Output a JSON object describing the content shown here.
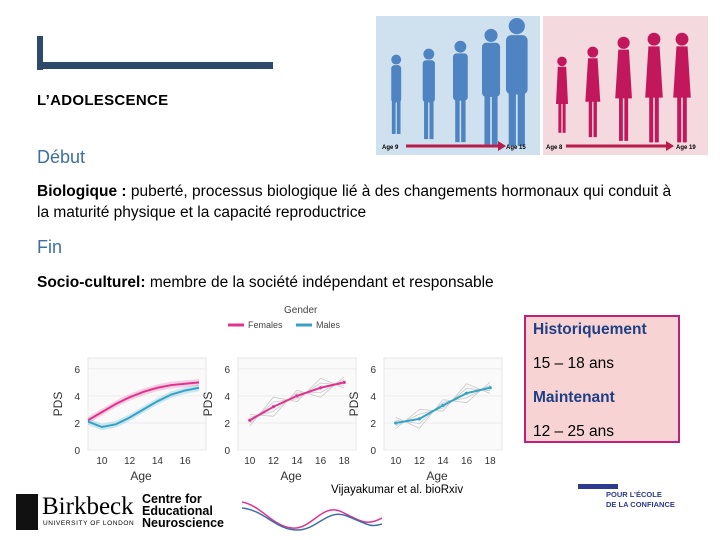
{
  "slide": {
    "title": "L’ADOLESCENCE",
    "debut_heading": "Début",
    "fin_heading": "Fin",
    "p1_term": "Biologique :",
    "p1_text": " puberté, processus biologique lié à des changements hormonaux qui conduit à la maturité physique et la capacité reproductrice",
    "p2_term": "Socio-culturel:",
    "p2_text": " membre de la société indépendant et responsable"
  },
  "figure": {
    "blue_arrow": {
      "start": "Age 9",
      "end": "Age 15"
    },
    "pink_arrow": {
      "start": "Age 8",
      "end": "Age 19"
    }
  },
  "infobox": {
    "label1": "Historiquement",
    "value1": "15 – 18 ans",
    "label2": "Maintenant",
    "value2": "12 – 25 ans"
  },
  "chart_data": [
    {
      "type": "line",
      "title": "",
      "xlabel": "Age",
      "ylabel": "PDS",
      "xticks": [
        10,
        12,
        14,
        16
      ],
      "yticks": [
        0,
        2,
        4,
        6
      ],
      "legend_title": "Gender",
      "series": [
        {
          "name": "Females",
          "x": [
            9,
            10,
            11,
            12,
            13,
            14,
            15,
            16,
            17
          ],
          "values": [
            2.2,
            2.8,
            3.4,
            3.9,
            4.3,
            4.6,
            4.8,
            4.9,
            5.0
          ]
        },
        {
          "name": "Males",
          "x": [
            9,
            10,
            11,
            12,
            13,
            14,
            15,
            16,
            17
          ],
          "values": [
            2.1,
            1.7,
            1.9,
            2.4,
            3.0,
            3.6,
            4.1,
            4.4,
            4.6
          ]
        }
      ]
    },
    {
      "type": "line",
      "xlabel": "Age",
      "ylabel": "PDS",
      "xticks": [
        10,
        12,
        14,
        16,
        18
      ],
      "yticks": [
        0,
        2,
        4,
        6
      ],
      "series": [
        {
          "name": "Females",
          "x": [
            10,
            12,
            14,
            16,
            18
          ],
          "values": [
            2.2,
            3.2,
            4.0,
            4.6,
            5.0
          ]
        }
      ]
    },
    {
      "type": "line",
      "xlabel": "Age",
      "ylabel": "PDS",
      "xticks": [
        10,
        12,
        14,
        16,
        18
      ],
      "yticks": [
        0,
        2,
        4,
        6
      ],
      "series": [
        {
          "name": "Males",
          "x": [
            10,
            12,
            14,
            16,
            18
          ],
          "values": [
            2.0,
            2.3,
            3.3,
            4.2,
            4.6
          ]
        }
      ]
    }
  ],
  "citation": "Vijayakumar et al. bioRxiv",
  "logos": {
    "birkbeck": "Birkbeck",
    "birkbeck_sub": "UNIVERSITY OF LONDON",
    "cen_line1": "Centre for",
    "cen_line2": "Educational",
    "cen_line3": "Neuroscience",
    "ecole_line1": "POUR L’ÉCOLE",
    "ecole_line2": "DE LA CONFIANCE"
  },
  "colors": {
    "title_rule": "#2e4a6b",
    "heading_blue": "#3e6ea6",
    "females": "#e0338f",
    "males": "#33a3c7",
    "infobox_fill": "#f7d3d3",
    "infobox_border": "#c0207a"
  }
}
